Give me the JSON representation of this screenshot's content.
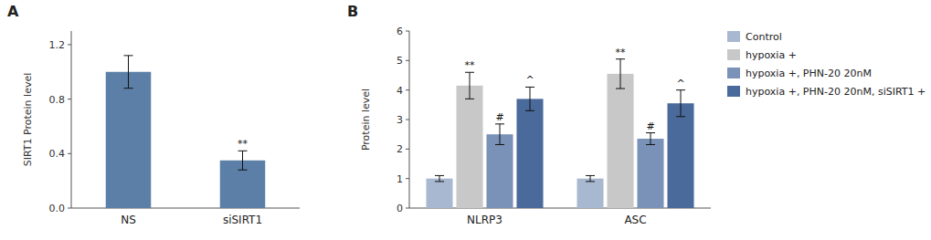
{
  "chart_data": [
    {
      "type": "bar",
      "title": "A",
      "categories": [
        "NS",
        "siSIRT1"
      ],
      "values": [
        1.0,
        0.35
      ],
      "errors": [
        0.12,
        0.07
      ],
      "color": "#5b7fa6",
      "ylabel": "SIRT1 Protein level",
      "ylim": [
        0,
        1.3
      ],
      "yticks": [
        {
          "value": 0,
          "label": "0.0"
        },
        0.4,
        0.8,
        1.2
      ],
      "annotations": [
        {
          "category": "siSIRT1",
          "text": "**"
        }
      ]
    },
    {
      "type": "bar",
      "title": "B",
      "categories": [
        "NLRP3",
        "ASC"
      ],
      "series": [
        {
          "name": "Control",
          "color": "#a8b8d0",
          "values": [
            1.0,
            1.0
          ],
          "errors": [
            0.1,
            0.1
          ]
        },
        {
          "name": "hypoxia +",
          "color": "#c8c8c8",
          "values": [
            4.15,
            4.55
          ],
          "errors": [
            0.45,
            0.5
          ]
        },
        {
          "name": "hypoxia +, PHN-20 20nM",
          "color": "#7b92b8",
          "values": [
            2.5,
            2.35
          ],
          "errors": [
            0.35,
            0.2
          ]
        },
        {
          "name": "hypoxia +, PHN-20 20nM, siSIRT1 +",
          "color": "#4a6a9c",
          "values": [
            3.7,
            3.55
          ],
          "errors": [
            0.4,
            0.45
          ]
        }
      ],
      "ylabel": "Protein level",
      "ylim": [
        0,
        6
      ],
      "yticks": [
        0,
        1,
        2,
        3,
        4,
        5,
        6
      ],
      "legend": "upper right",
      "annotations": [
        {
          "category": "NLRP3",
          "series": "hypoxia +",
          "text": "**"
        },
        {
          "category": "NLRP3",
          "series": "hypoxia +, PHN-20 20nM",
          "text": "#"
        },
        {
          "category": "NLRP3",
          "series": "hypoxia +, PHN-20 20nM, siSIRT1 +",
          "text": "^"
        },
        {
          "category": "ASC",
          "series": "hypoxia +",
          "text": "**"
        },
        {
          "category": "ASC",
          "series": "hypoxia +, PHN-20 20nM",
          "text": "#"
        },
        {
          "category": "ASC",
          "series": "hypoxia +, PHN-20 20nM, siSIRT1 +",
          "text": "^"
        }
      ]
    }
  ]
}
